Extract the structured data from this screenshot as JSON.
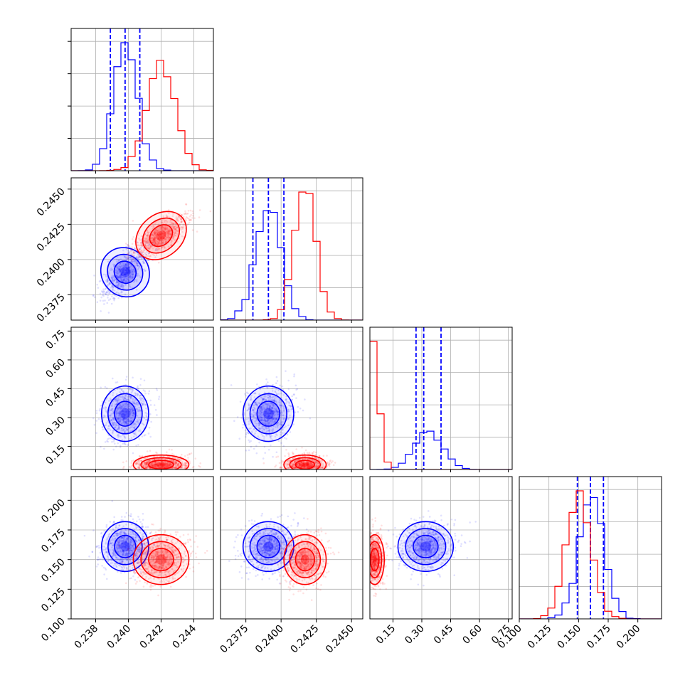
{
  "chart_data": {
    "type": "corner",
    "title": "",
    "params": [
      {
        "range": [
          0.2365,
          0.2452
        ],
        "ticks": [
          0.238,
          0.24,
          0.242,
          0.244
        ],
        "tick_labels": [
          "0.238",
          "0.240",
          "0.242",
          "0.244"
        ]
      },
      {
        "range": [
          0.2357,
          0.2458
        ],
        "ticks": [
          0.2375,
          0.24,
          0.2425,
          0.245
        ],
        "tick_labels": [
          "0.2375",
          "0.2400",
          "0.2425",
          "0.2450"
        ]
      },
      {
        "range": [
          0.03,
          0.77
        ],
        "ticks": [
          0.15,
          0.3,
          0.45,
          0.6,
          0.75
        ],
        "tick_labels": [
          "0.15",
          "0.30",
          "0.45",
          "0.60",
          "0.75"
        ]
      },
      {
        "range": [
          0.1,
          0.22
        ],
        "ticks": [
          0.1,
          0.125,
          0.15,
          0.175,
          0.2
        ],
        "tick_labels": [
          "0.100",
          "0.125",
          "0.150",
          "0.175",
          "0.200"
        ]
      }
    ],
    "series": [
      {
        "color": "#0000ff",
        "mean": [
          0.2398,
          0.2391,
          0.32,
          0.161
        ],
        "sd": [
          0.00072,
          0.0009,
          0.072,
          0.0105
        ],
        "quantiles": [
          [
            0.2389,
            0.2398,
            0.2407
          ],
          [
            0.238,
            0.2391,
            0.2402
          ],
          [
            0.27,
            0.31,
            0.4
          ],
          [
            0.149,
            0.16,
            0.171
          ]
        ]
      },
      {
        "color": "#ff0000",
        "mean": [
          0.242,
          0.2417,
          0.06,
          0.15
        ],
        "sd": [
          0.00085,
          0.00075,
          0.025,
          0.0105
        ],
        "quantiles": null
      }
    ],
    "legend": "none",
    "grid": true
  }
}
